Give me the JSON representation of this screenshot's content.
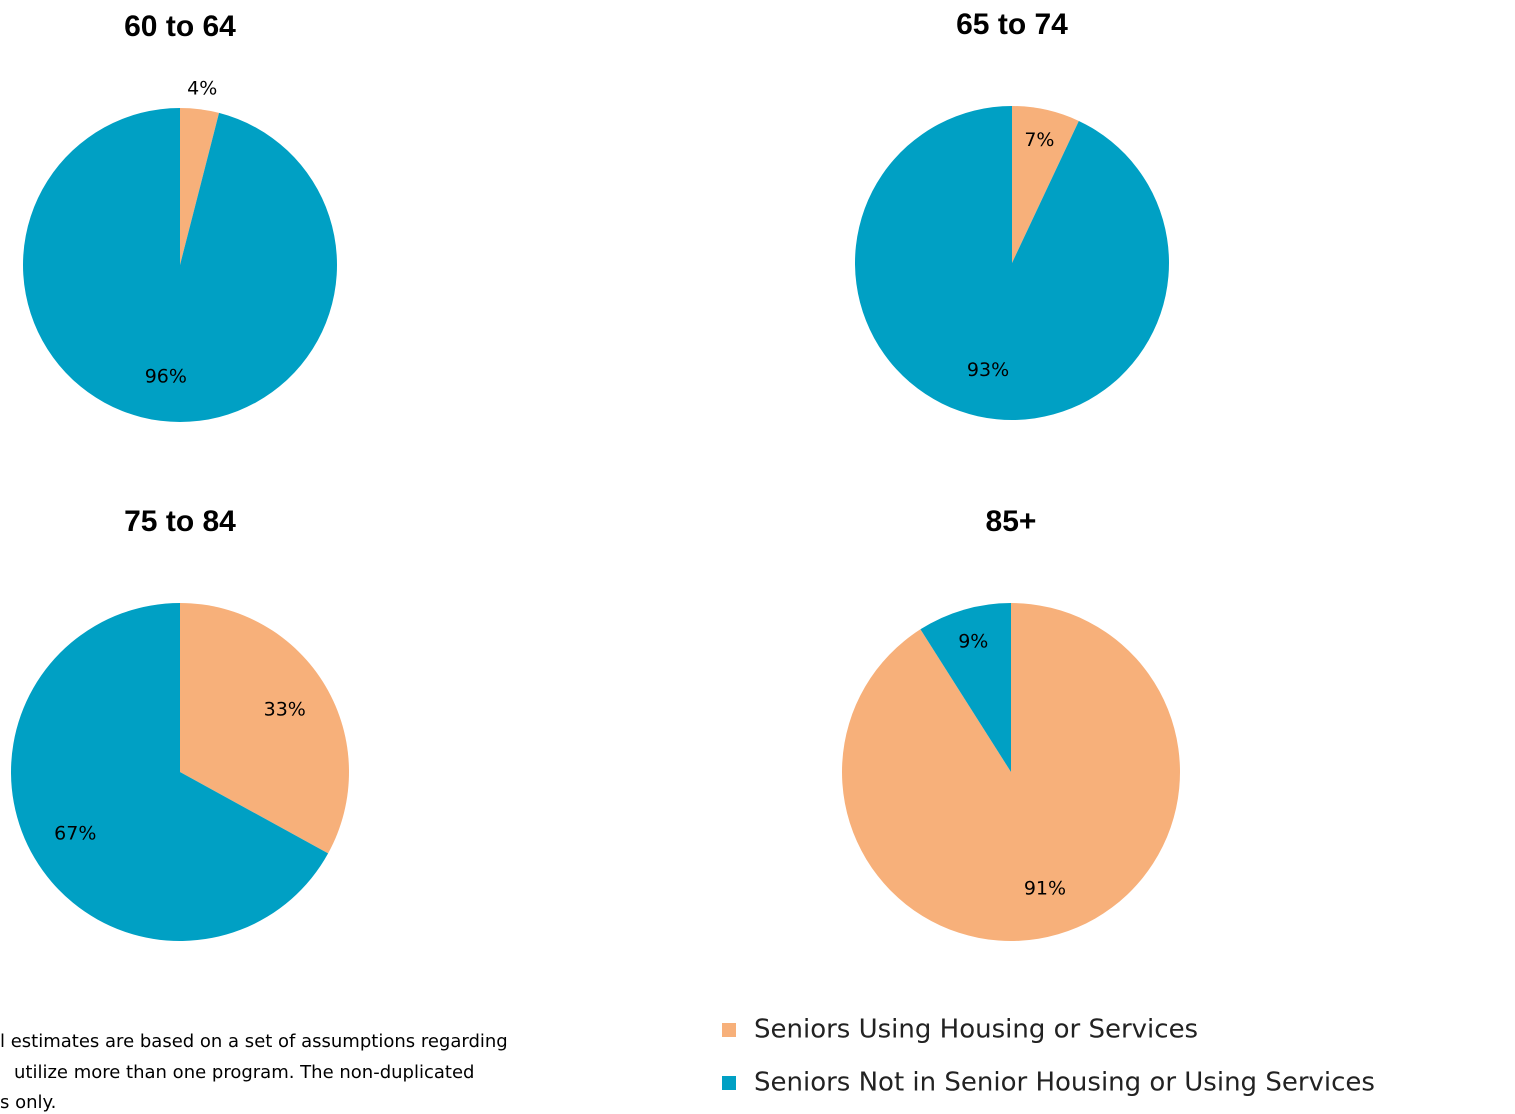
{
  "chart_data": [
    {
      "type": "pie",
      "title": "60 to 64",
      "categories": [
        "Seniors Using Housing or Services",
        "Seniors Not in Senior Housing or Using Services"
      ],
      "values": [
        4,
        96
      ],
      "value_labels": [
        "4%",
        "96%"
      ],
      "colors": [
        "#f7b07a",
        "#00a0c4"
      ]
    },
    {
      "type": "pie",
      "title": "65 to 74",
      "categories": [
        "Seniors Using Housing or Services",
        "Seniors Not in Senior Housing or Using Services"
      ],
      "values": [
        7,
        93
      ],
      "value_labels": [
        "7%",
        "93%"
      ],
      "colors": [
        "#f7b07a",
        "#00a0c4"
      ]
    },
    {
      "type": "pie",
      "title": "75 to 84",
      "categories": [
        "Seniors Using Housing or Services",
        "Seniors Not in Senior Housing or Using Services"
      ],
      "values": [
        33,
        67
      ],
      "value_labels": [
        "33%",
        "67%"
      ],
      "colors": [
        "#f7b07a",
        "#00a0c4"
      ]
    },
    {
      "type": "pie",
      "title": "85+",
      "categories": [
        "Seniors Using Housing or Services",
        "Seniors Not in Senior Housing or Using Services"
      ],
      "values": [
        91,
        9
      ],
      "value_labels": [
        "91%",
        "9%"
      ],
      "colors": [
        "#f7b07a",
        "#00a0c4"
      ]
    }
  ],
  "footnote": [
    "l estimates are based on a set of assumptions regarding",
    "utilize more than one program. The non-duplicated",
    "s only."
  ]
}
